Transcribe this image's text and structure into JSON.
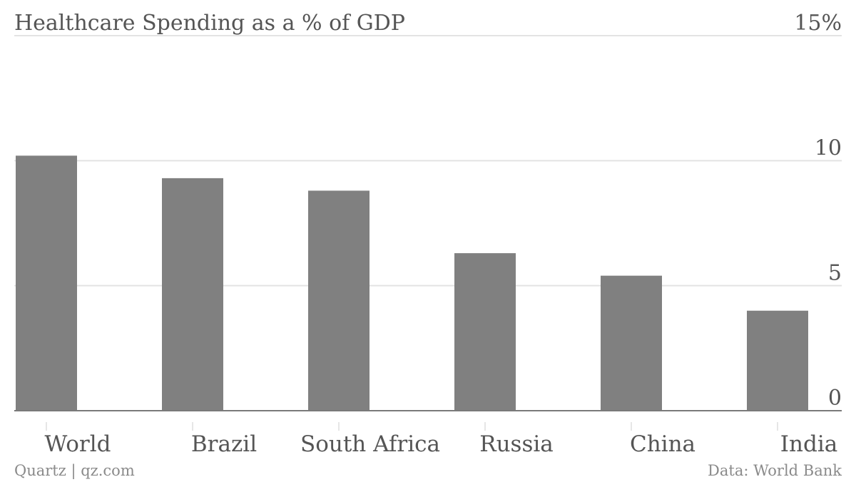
{
  "chart_data": {
    "type": "bar",
    "title": "Healthcare Spending as a % of GDP",
    "categories": [
      "World",
      "Brazil",
      "South Africa",
      "Russia",
      "China",
      "India"
    ],
    "values": [
      10.2,
      9.3,
      8.8,
      6.3,
      5.4,
      4.0
    ],
    "ylim": [
      0,
      15
    ],
    "yticks": [
      0,
      5,
      10,
      15
    ],
    "ytick_labels": [
      "0",
      "5",
      "10",
      "15%"
    ],
    "y_axis_side": "right",
    "grid": true,
    "bar_color": "#808080",
    "xlabel": "",
    "ylabel": ""
  },
  "footer": {
    "left": "Quartz | qz.com",
    "right": "Data: World Bank"
  }
}
